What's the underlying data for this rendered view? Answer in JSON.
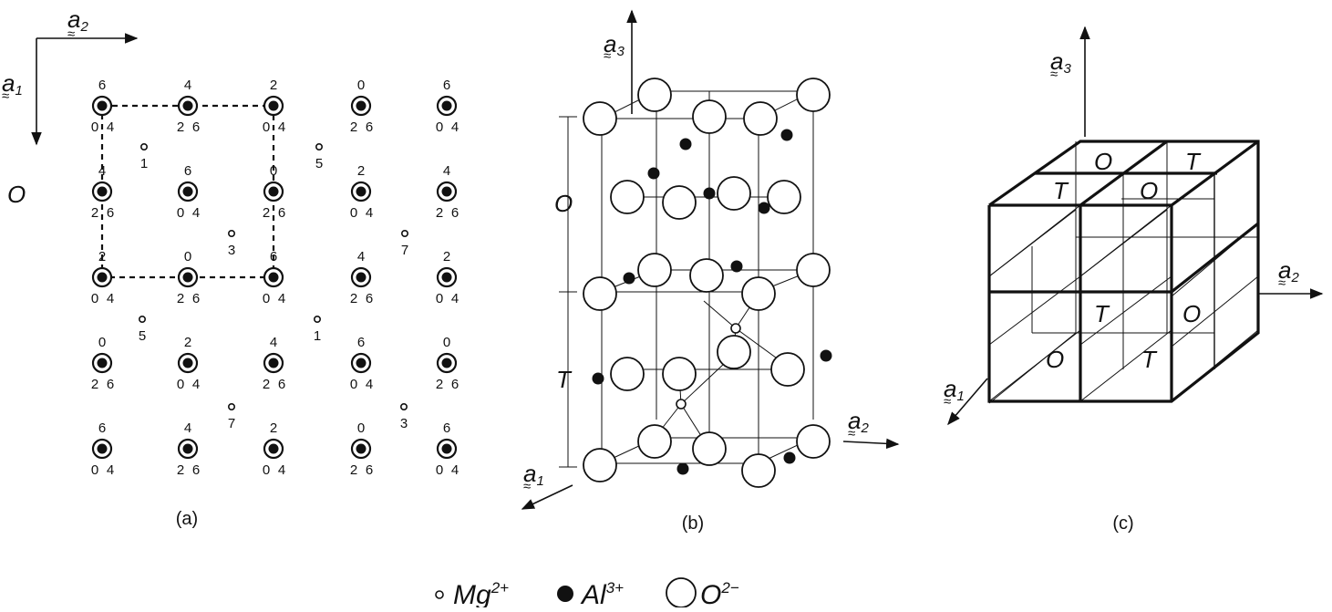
{
  "panels": {
    "a": {
      "caption": "(a)",
      "axis_a1": "a",
      "axis_a1_sub": "1",
      "axis_a2": "a",
      "axis_a2_sub": "2",
      "origin_label": "O",
      "oxygen_rows": [
        [
          {
            "top": "6",
            "bl": "0",
            "br": "4"
          },
          {
            "top": "4",
            "bl": "2",
            "br": "6"
          },
          {
            "top": "2",
            "bl": "0",
            "br": "4"
          },
          {
            "top": "0",
            "bl": "2",
            "br": "6"
          },
          {
            "top": "6",
            "bl": "0",
            "br": "4"
          }
        ],
        [
          {
            "top": "4",
            "bl": "2",
            "br": "6"
          },
          {
            "top": "6",
            "bl": "0",
            "br": "4"
          },
          {
            "top": "0",
            "bl": "2",
            "br": "6"
          },
          {
            "top": "2",
            "bl": "0",
            "br": "4"
          },
          {
            "top": "4",
            "bl": "2",
            "br": "6"
          }
        ],
        [
          {
            "top": "2",
            "bl": "0",
            "br": "4"
          },
          {
            "top": "0",
            "bl": "2",
            "br": "6"
          },
          {
            "top": "6",
            "bl": "0",
            "br": "4"
          },
          {
            "top": "4",
            "bl": "2",
            "br": "6"
          },
          {
            "top": "2",
            "bl": "0",
            "br": "4"
          }
        ],
        [
          {
            "top": "0",
            "bl": "2",
            "br": "6"
          },
          {
            "top": "2",
            "bl": "0",
            "br": "4"
          },
          {
            "top": "4",
            "bl": "2",
            "br": "6"
          },
          {
            "top": "6",
            "bl": "0",
            "br": "4"
          },
          {
            "top": "0",
            "bl": "2",
            "br": "6"
          }
        ],
        [
          {
            "top": "6",
            "bl": "0",
            "br": "4"
          },
          {
            "top": "4",
            "bl": "2",
            "br": "6"
          },
          {
            "top": "2",
            "bl": "0",
            "br": "4"
          },
          {
            "top": "0",
            "bl": "2",
            "br": "6"
          },
          {
            "top": "6",
            "bl": "0",
            "br": "4"
          }
        ]
      ],
      "mg_labels": [
        "1",
        "5",
        "3",
        "7",
        "5",
        "1",
        "7",
        "3"
      ]
    },
    "b": {
      "caption": "(b)",
      "axis_a1": "a",
      "axis_a1_sub": "1",
      "axis_a2": "a",
      "axis_a2_sub": "2",
      "axis_a3": "a",
      "axis_a3_sub": "3",
      "layer_o": "O",
      "layer_t": "T"
    },
    "c": {
      "caption": "(c)",
      "axis_a1": "a",
      "axis_a1_sub": "1",
      "axis_a2": "a",
      "axis_a2_sub": "2",
      "axis_a3": "a",
      "axis_a3_sub": "3",
      "top_back_left": "O",
      "top_back_right": "T",
      "top_front_left": "T",
      "top_front_right": "O",
      "front_top_left": "T",
      "front_bottom_left": "O",
      "front_bottom_right": "T",
      "side_right": "O"
    }
  },
  "legend": {
    "mg": "Mg",
    "mg_charge": "2+",
    "al": "Al",
    "al_charge": "3+",
    "o": "O",
    "o_charge": "2−"
  }
}
